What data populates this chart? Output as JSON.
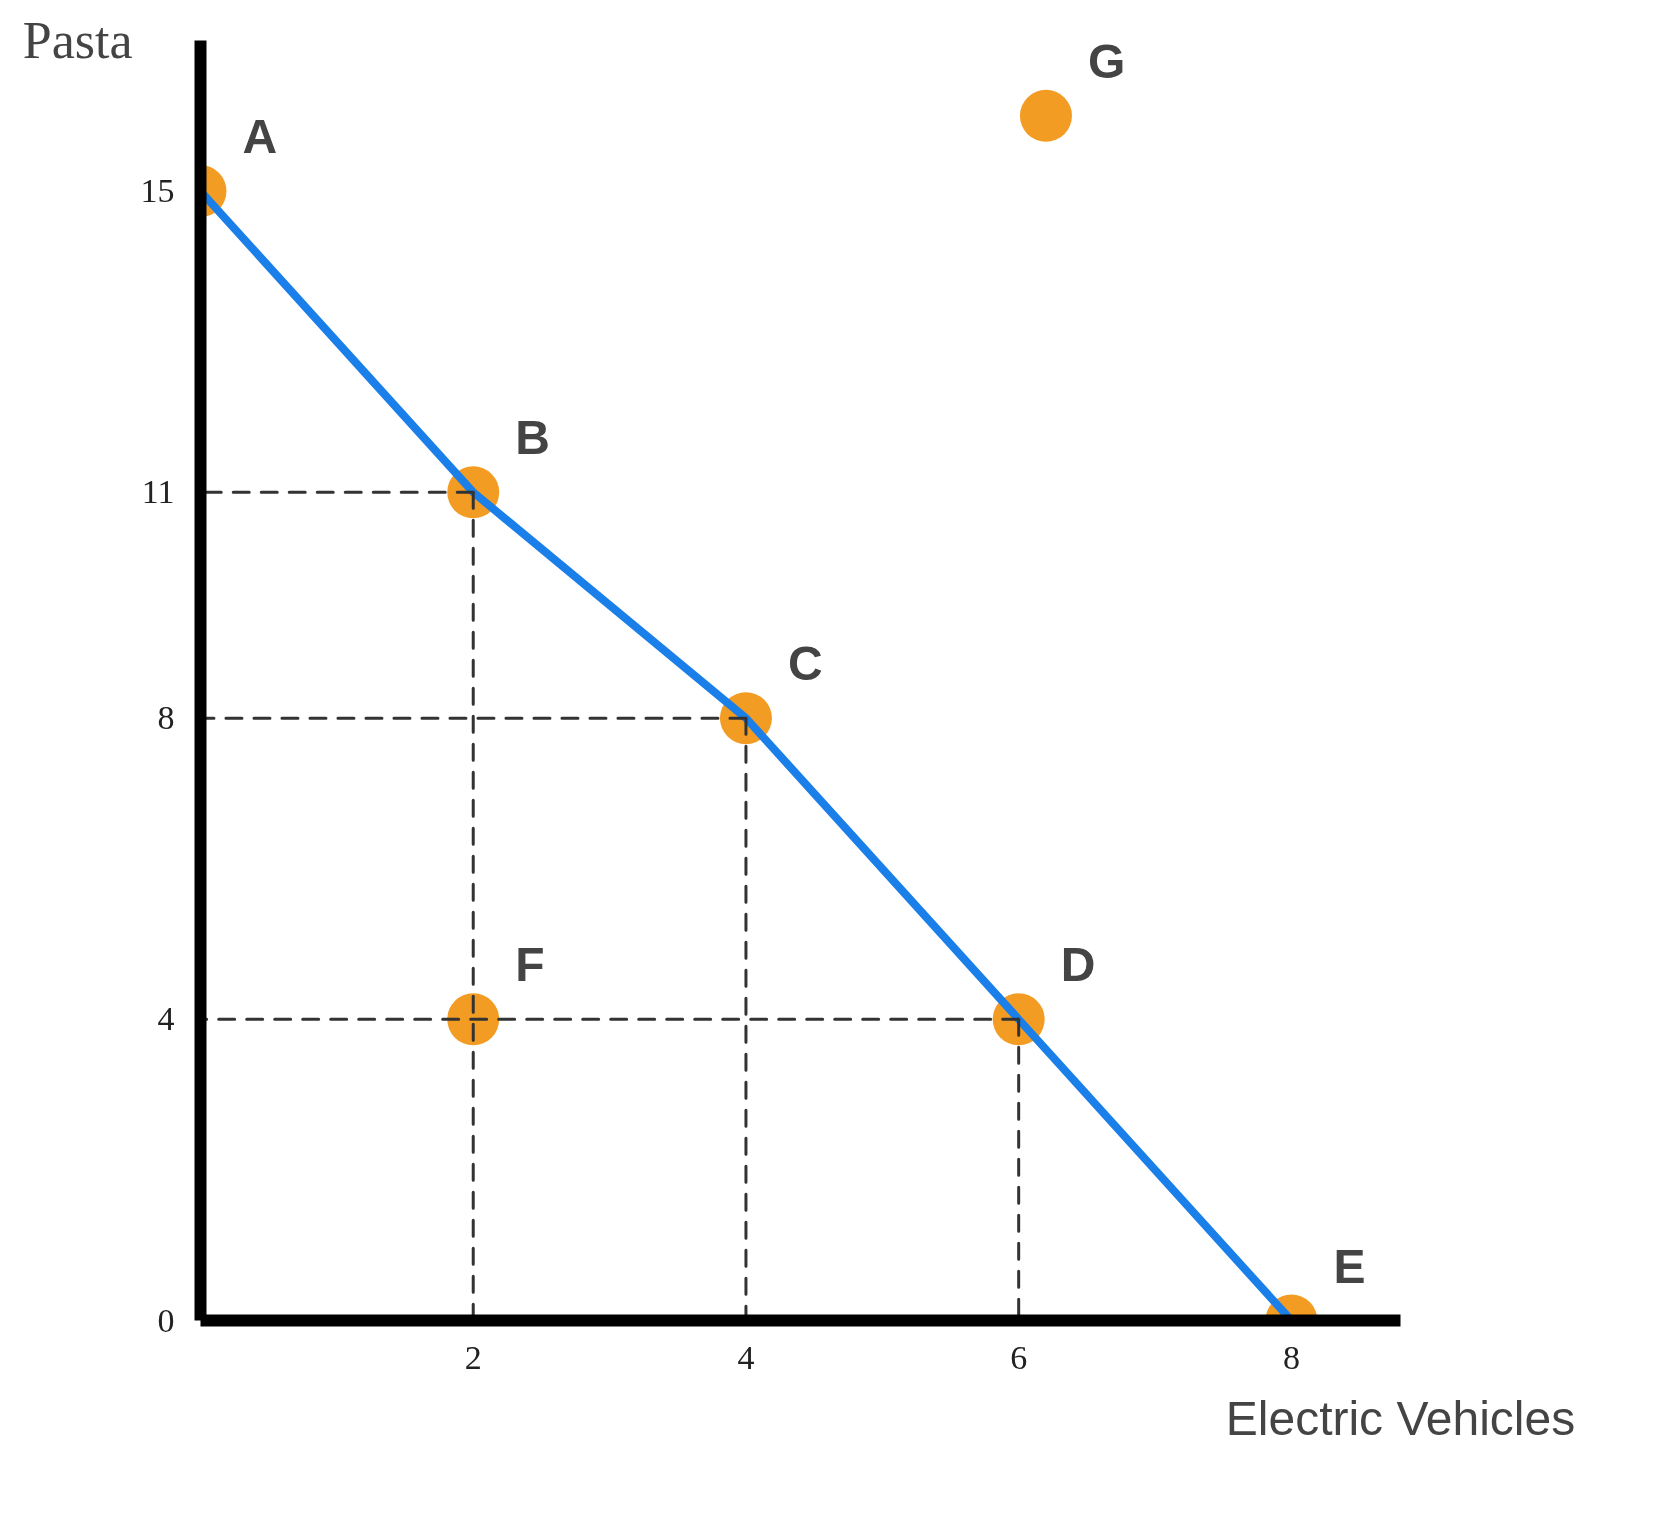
{
  "chart_data": {
    "type": "scatter",
    "xlabel": "Electric Vehicles",
    "ylabel": "Pasta",
    "xlim": [
      0,
      8.8
    ],
    "ylim": [
      0,
      17
    ],
    "xticks": [
      2,
      4,
      6,
      8
    ],
    "yticks": [
      0,
      4,
      8,
      11,
      15
    ],
    "grid": false,
    "series": [
      {
        "type": "line",
        "color": "#1a7fe8",
        "line_style": "solid",
        "x": [
          0,
          2,
          4,
          6,
          8
        ],
        "values": [
          15,
          11,
          8,
          4,
          0
        ]
      },
      {
        "type": "line",
        "color": "#333333",
        "line_style": "dashed",
        "x": [
          2,
          0
        ],
        "values": [
          11,
          11
        ]
      },
      {
        "type": "line",
        "color": "#333333",
        "line_style": "dashed",
        "x": [
          2,
          2
        ],
        "values": [
          11,
          0
        ]
      },
      {
        "type": "line",
        "color": "#333333",
        "line_style": "dashed",
        "x": [
          4,
          0
        ],
        "values": [
          8,
          8
        ]
      },
      {
        "type": "line",
        "color": "#333333",
        "line_style": "dashed",
        "x": [
          4,
          4
        ],
        "values": [
          8,
          0
        ]
      },
      {
        "type": "line",
        "color": "#333333",
        "line_style": "dashed",
        "x": [
          6,
          0
        ],
        "values": [
          4,
          4
        ]
      },
      {
        "type": "line",
        "color": "#333333",
        "line_style": "dashed",
        "x": [
          6,
          6
        ],
        "values": [
          4,
          0
        ]
      },
      {
        "marker": "circle",
        "color": "#f39c24",
        "x": [
          0,
          2,
          4,
          6,
          8,
          2,
          6.2
        ],
        "values": [
          15,
          11,
          8,
          4,
          0,
          4,
          16
        ]
      }
    ],
    "annotations": [
      {
        "text": "A",
        "x": 0,
        "y": 15
      },
      {
        "text": "B",
        "x": 2,
        "y": 11
      },
      {
        "text": "C",
        "x": 4,
        "y": 8
      },
      {
        "text": "D",
        "x": 6,
        "y": 4
      },
      {
        "text": "E",
        "x": 8,
        "y": 0
      },
      {
        "text": "F",
        "x": 2,
        "y": 4
      },
      {
        "text": "G",
        "x": 6.2,
        "y": 16
      }
    ]
  }
}
